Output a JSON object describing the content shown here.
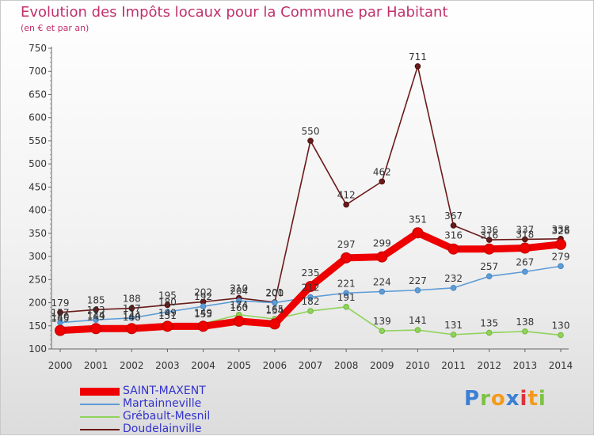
{
  "header": {
    "title": "Evolution des Impôts locaux pour la Commune par Habitant",
    "subtitle": "(en € et par an)"
  },
  "chart_data": {
    "type": "line",
    "title": "Evolution des Impôts locaux pour la Commune par Habitant",
    "subtitle": "(en € et par an)",
    "x": [
      "2000",
      "2001",
      "2002",
      "2003",
      "2004",
      "2005",
      "2006",
      "2007",
      "2008",
      "2009",
      "2010",
      "2011",
      "2012",
      "2013",
      "2014"
    ],
    "ylim": [
      100,
      750
    ],
    "yticks": [
      100,
      150,
      200,
      250,
      300,
      350,
      400,
      450,
      500,
      550,
      600,
      650,
      700,
      750
    ],
    "grid": "none",
    "legend_position": "bottom-left",
    "series": [
      {
        "name": "SAINT-MAXENT",
        "color": "#ee0000",
        "values": [
          140,
          144,
          144,
          149,
          149,
          160,
          154,
          235,
          297,
          299,
          351,
          316,
          316,
          318,
          326
        ]
      },
      {
        "name": "Martainneville",
        "color": "#5d9cd6",
        "values": [
          157,
          163,
          167,
          180,
          192,
          204,
          200,
          212,
          221,
          224,
          227,
          232,
          257,
          267,
          279
        ]
      },
      {
        "name": "Grébault-Mesnil",
        "color": "#8fd35a",
        "values": [
          145,
          149,
          148,
          151,
          155,
          174,
          165,
          182,
          191,
          139,
          141,
          131,
          135,
          138,
          130
        ]
      },
      {
        "name": "Doudelainville",
        "color": "#6b1a1a",
        "values": [
          179,
          185,
          188,
          195,
          202,
          210,
          201,
          550,
          412,
          462,
          711,
          367,
          336,
          337,
          338
        ]
      }
    ]
  },
  "logo": {
    "letters": [
      "P",
      "r",
      "o",
      "x",
      "i",
      "t",
      "i"
    ],
    "colors": [
      "#3b7fd4",
      "#7cc242",
      "#f39a1e",
      "#3b7fd4",
      "#e0323a",
      "#f39a1e",
      "#7cc242"
    ]
  }
}
